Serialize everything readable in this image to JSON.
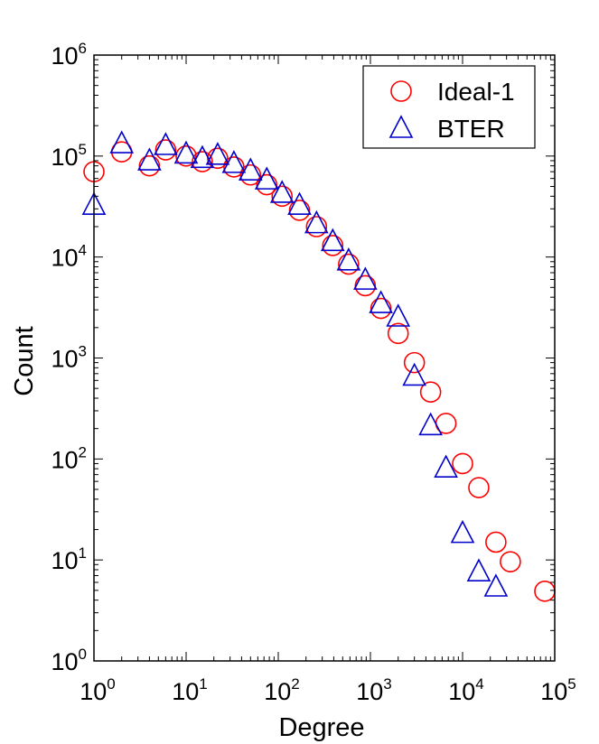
{
  "chart_data": {
    "type": "scatter",
    "title": "",
    "xlabel": "Degree",
    "ylabel": "Count",
    "xscale": "log",
    "yscale": "log",
    "xlim": [
      1,
      100000
    ],
    "ylim": [
      1,
      1000000
    ],
    "x_ticks": [
      {
        "value": 1,
        "base": "10",
        "exp": "0"
      },
      {
        "value": 10,
        "base": "10",
        "exp": "1"
      },
      {
        "value": 100,
        "base": "10",
        "exp": "2"
      },
      {
        "value": 1000,
        "base": "10",
        "exp": "3"
      },
      {
        "value": 10000,
        "base": "10",
        "exp": "4"
      },
      {
        "value": 100000,
        "base": "10",
        "exp": "5"
      }
    ],
    "y_ticks": [
      {
        "value": 1,
        "base": "10",
        "exp": "0"
      },
      {
        "value": 10,
        "base": "10",
        "exp": "1"
      },
      {
        "value": 100,
        "base": "10",
        "exp": "2"
      },
      {
        "value": 1000,
        "base": "10",
        "exp": "3"
      },
      {
        "value": 10000,
        "base": "10",
        "exp": "4"
      },
      {
        "value": 100000,
        "base": "10",
        "exp": "5"
      },
      {
        "value": 1000000,
        "base": "10",
        "exp": "6"
      }
    ],
    "grid": false,
    "legend_position": "top-right",
    "series": [
      {
        "name": "Ideal-1",
        "marker": "circle",
        "color": "#ff0000",
        "points": [
          [
            1,
            70000
          ],
          [
            2,
            110000
          ],
          [
            4,
            80000
          ],
          [
            6,
            115000
          ],
          [
            10,
            100000
          ],
          [
            15,
            88000
          ],
          [
            22,
            95000
          ],
          [
            33,
            78000
          ],
          [
            50,
            65000
          ],
          [
            75,
            52000
          ],
          [
            110,
            40000
          ],
          [
            170,
            29000
          ],
          [
            260,
            20000
          ],
          [
            390,
            13000
          ],
          [
            580,
            8500
          ],
          [
            880,
            5200
          ],
          [
            1300,
            3100
          ],
          [
            2000,
            1750
          ],
          [
            3000,
            900
          ],
          [
            4500,
            460
          ],
          [
            6600,
            225
          ],
          [
            10000,
            90
          ],
          [
            15000,
            52
          ],
          [
            23000,
            15
          ],
          [
            33000,
            9.6
          ],
          [
            78000,
            4.9
          ]
        ]
      },
      {
        "name": "BTER",
        "marker": "triangle",
        "color": "#0000cc",
        "points": [
          [
            1,
            32000
          ],
          [
            2,
            130000
          ],
          [
            4,
            88000
          ],
          [
            6,
            125000
          ],
          [
            10,
            103000
          ],
          [
            15,
            93000
          ],
          [
            22,
            100000
          ],
          [
            33,
            83000
          ],
          [
            50,
            70000
          ],
          [
            75,
            57000
          ],
          [
            110,
            42000
          ],
          [
            170,
            32000
          ],
          [
            260,
            21000
          ],
          [
            390,
            14000
          ],
          [
            580,
            9000
          ],
          [
            880,
            5800
          ],
          [
            1300,
            3400
          ],
          [
            2000,
            2500
          ],
          [
            3000,
            650
          ],
          [
            4500,
            210
          ],
          [
            6600,
            80
          ],
          [
            10000,
            18
          ],
          [
            15000,
            7.5
          ],
          [
            23000,
            5.3
          ]
        ]
      }
    ]
  }
}
